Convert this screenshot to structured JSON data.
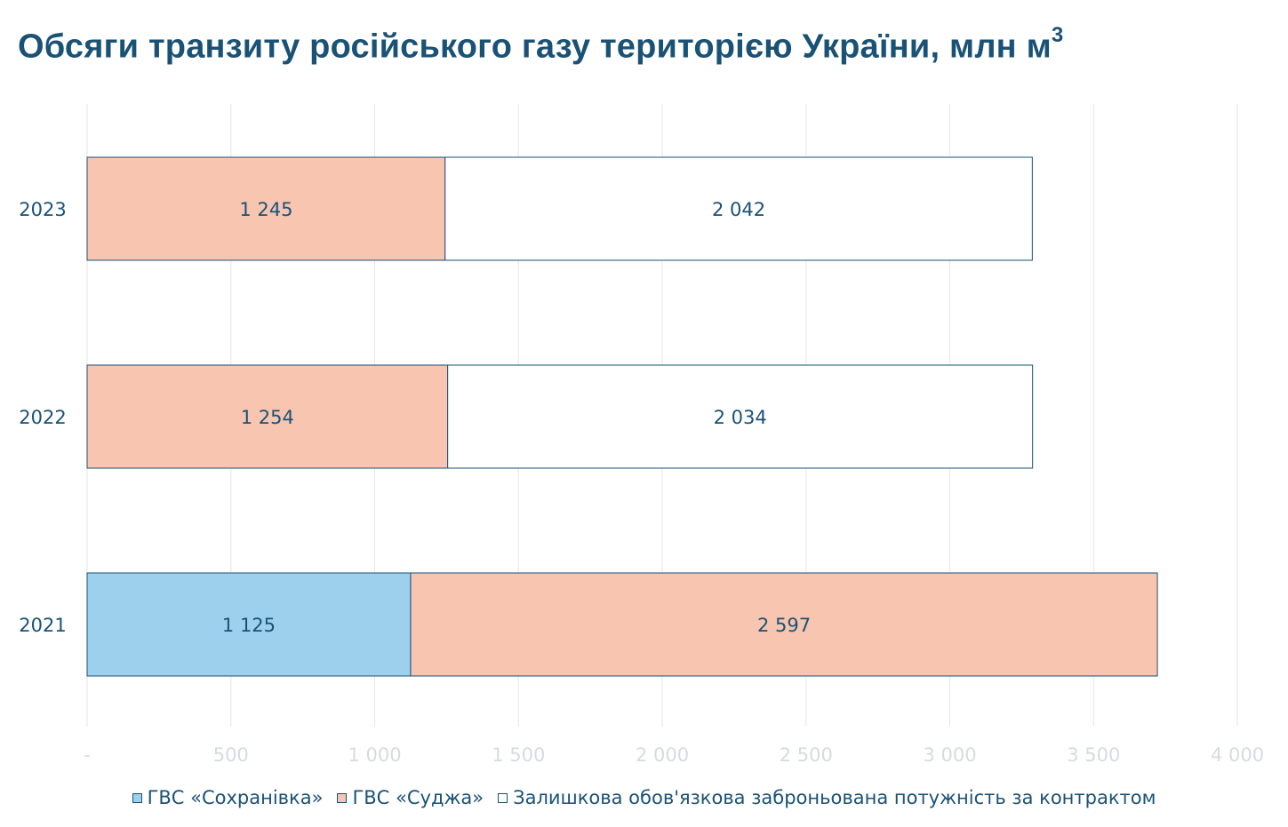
{
  "title": "Обсяги транзиту російського газу територією України, млн м",
  "title_superscript": "3",
  "chart_data": {
    "type": "bar",
    "orientation": "horizontal",
    "stacked": true,
    "title": "Обсяги транзиту російського газу територією України, млн м3",
    "categories": [
      "2023",
      "2022",
      "2021"
    ],
    "series": [
      {
        "name": "ГВС «Сохранівка»",
        "color": "#9dd0ec",
        "values": [
          0,
          0,
          1125
        ],
        "labels": [
          "",
          "",
          "1 125"
        ]
      },
      {
        "name": "ГВС «Суджа»",
        "color": "#f7c5b0",
        "values": [
          1245,
          1254,
          2597
        ],
        "labels": [
          "1 245",
          "1 254",
          "2 597"
        ]
      },
      {
        "name": "Залишкова обов'язкова заброньована потужність за контрактом",
        "color": "#ffffff",
        "values": [
          2042,
          2034,
          0
        ],
        "labels": [
          "2 042",
          "2 034",
          ""
        ]
      }
    ],
    "xlim": [
      0,
      4000
    ],
    "xticks": [
      {
        "value": 0,
        "label": "-"
      },
      {
        "value": 500,
        "label": "500"
      },
      {
        "value": 1000,
        "label": "1 000"
      },
      {
        "value": 1500,
        "label": "1 500"
      },
      {
        "value": 2000,
        "label": "2 000"
      },
      {
        "value": 2500,
        "label": "2 500"
      },
      {
        "value": 3000,
        "label": "3 000"
      },
      {
        "value": 3500,
        "label": "3 500"
      },
      {
        "value": 4000,
        "label": "4 000"
      }
    ],
    "grid": true,
    "legend_position": "bottom",
    "colors": {
      "text": "#1a5276",
      "bar_outline": "#1a5276",
      "grid": "#e6e6e6",
      "tick_label": "#d6dbe0"
    }
  }
}
